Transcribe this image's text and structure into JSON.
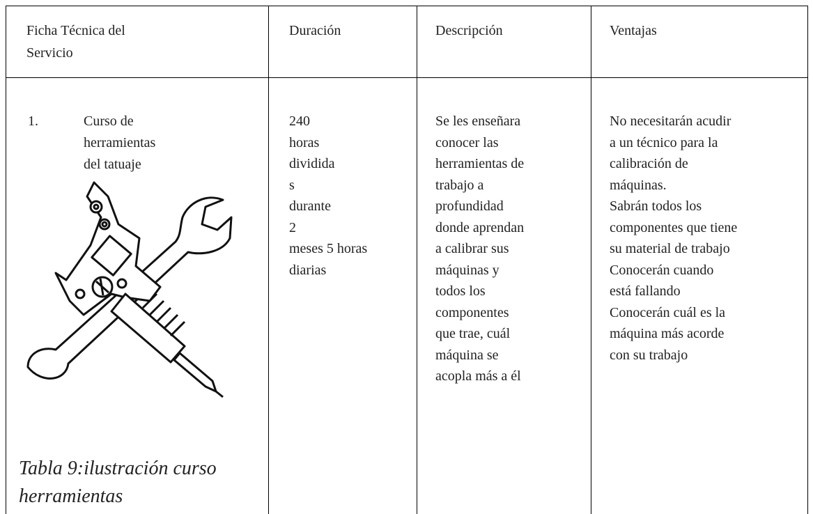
{
  "table": {
    "header": [
      [
        "Ficha Técnica del",
        "Servicio"
      ],
      [
        "Duración"
      ],
      [
        "Descripción"
      ],
      [
        "Ventajas"
      ]
    ],
    "rows": [
      {
        "number": "1.",
        "service": [
          "Curso de",
          "herramientas",
          "del tatuaje"
        ],
        "duration": [
          "240",
          "horas",
          "dividida",
          "s",
          "durante",
          "2",
          "meses 5 horas",
          "diarias"
        ],
        "description": [
          "Se les enseñara",
          "conocer las",
          "herramientas de",
          "trabajo a",
          "profundidad",
          "donde aprendan",
          "a calibrar sus",
          "máquinas y",
          "todos los",
          "componentes",
          "que trae, cuál",
          "máquina se",
          "acopla más a él"
        ],
        "advantages": [
          "No necesitarán acudir",
          "a un técnico para la",
          "calibración de",
          "máquinas.",
          "Sabrán todos los",
          "componentes que tiene",
          "su material de trabajo",
          "Conocerán cuando",
          "está fallando",
          "Conocerán cuál es la",
          "máquina más acorde",
          "con su trabajo"
        ],
        "caption": [
          "Tabla 9:ilustración curso",
          "herramientas"
        ]
      }
    ]
  }
}
